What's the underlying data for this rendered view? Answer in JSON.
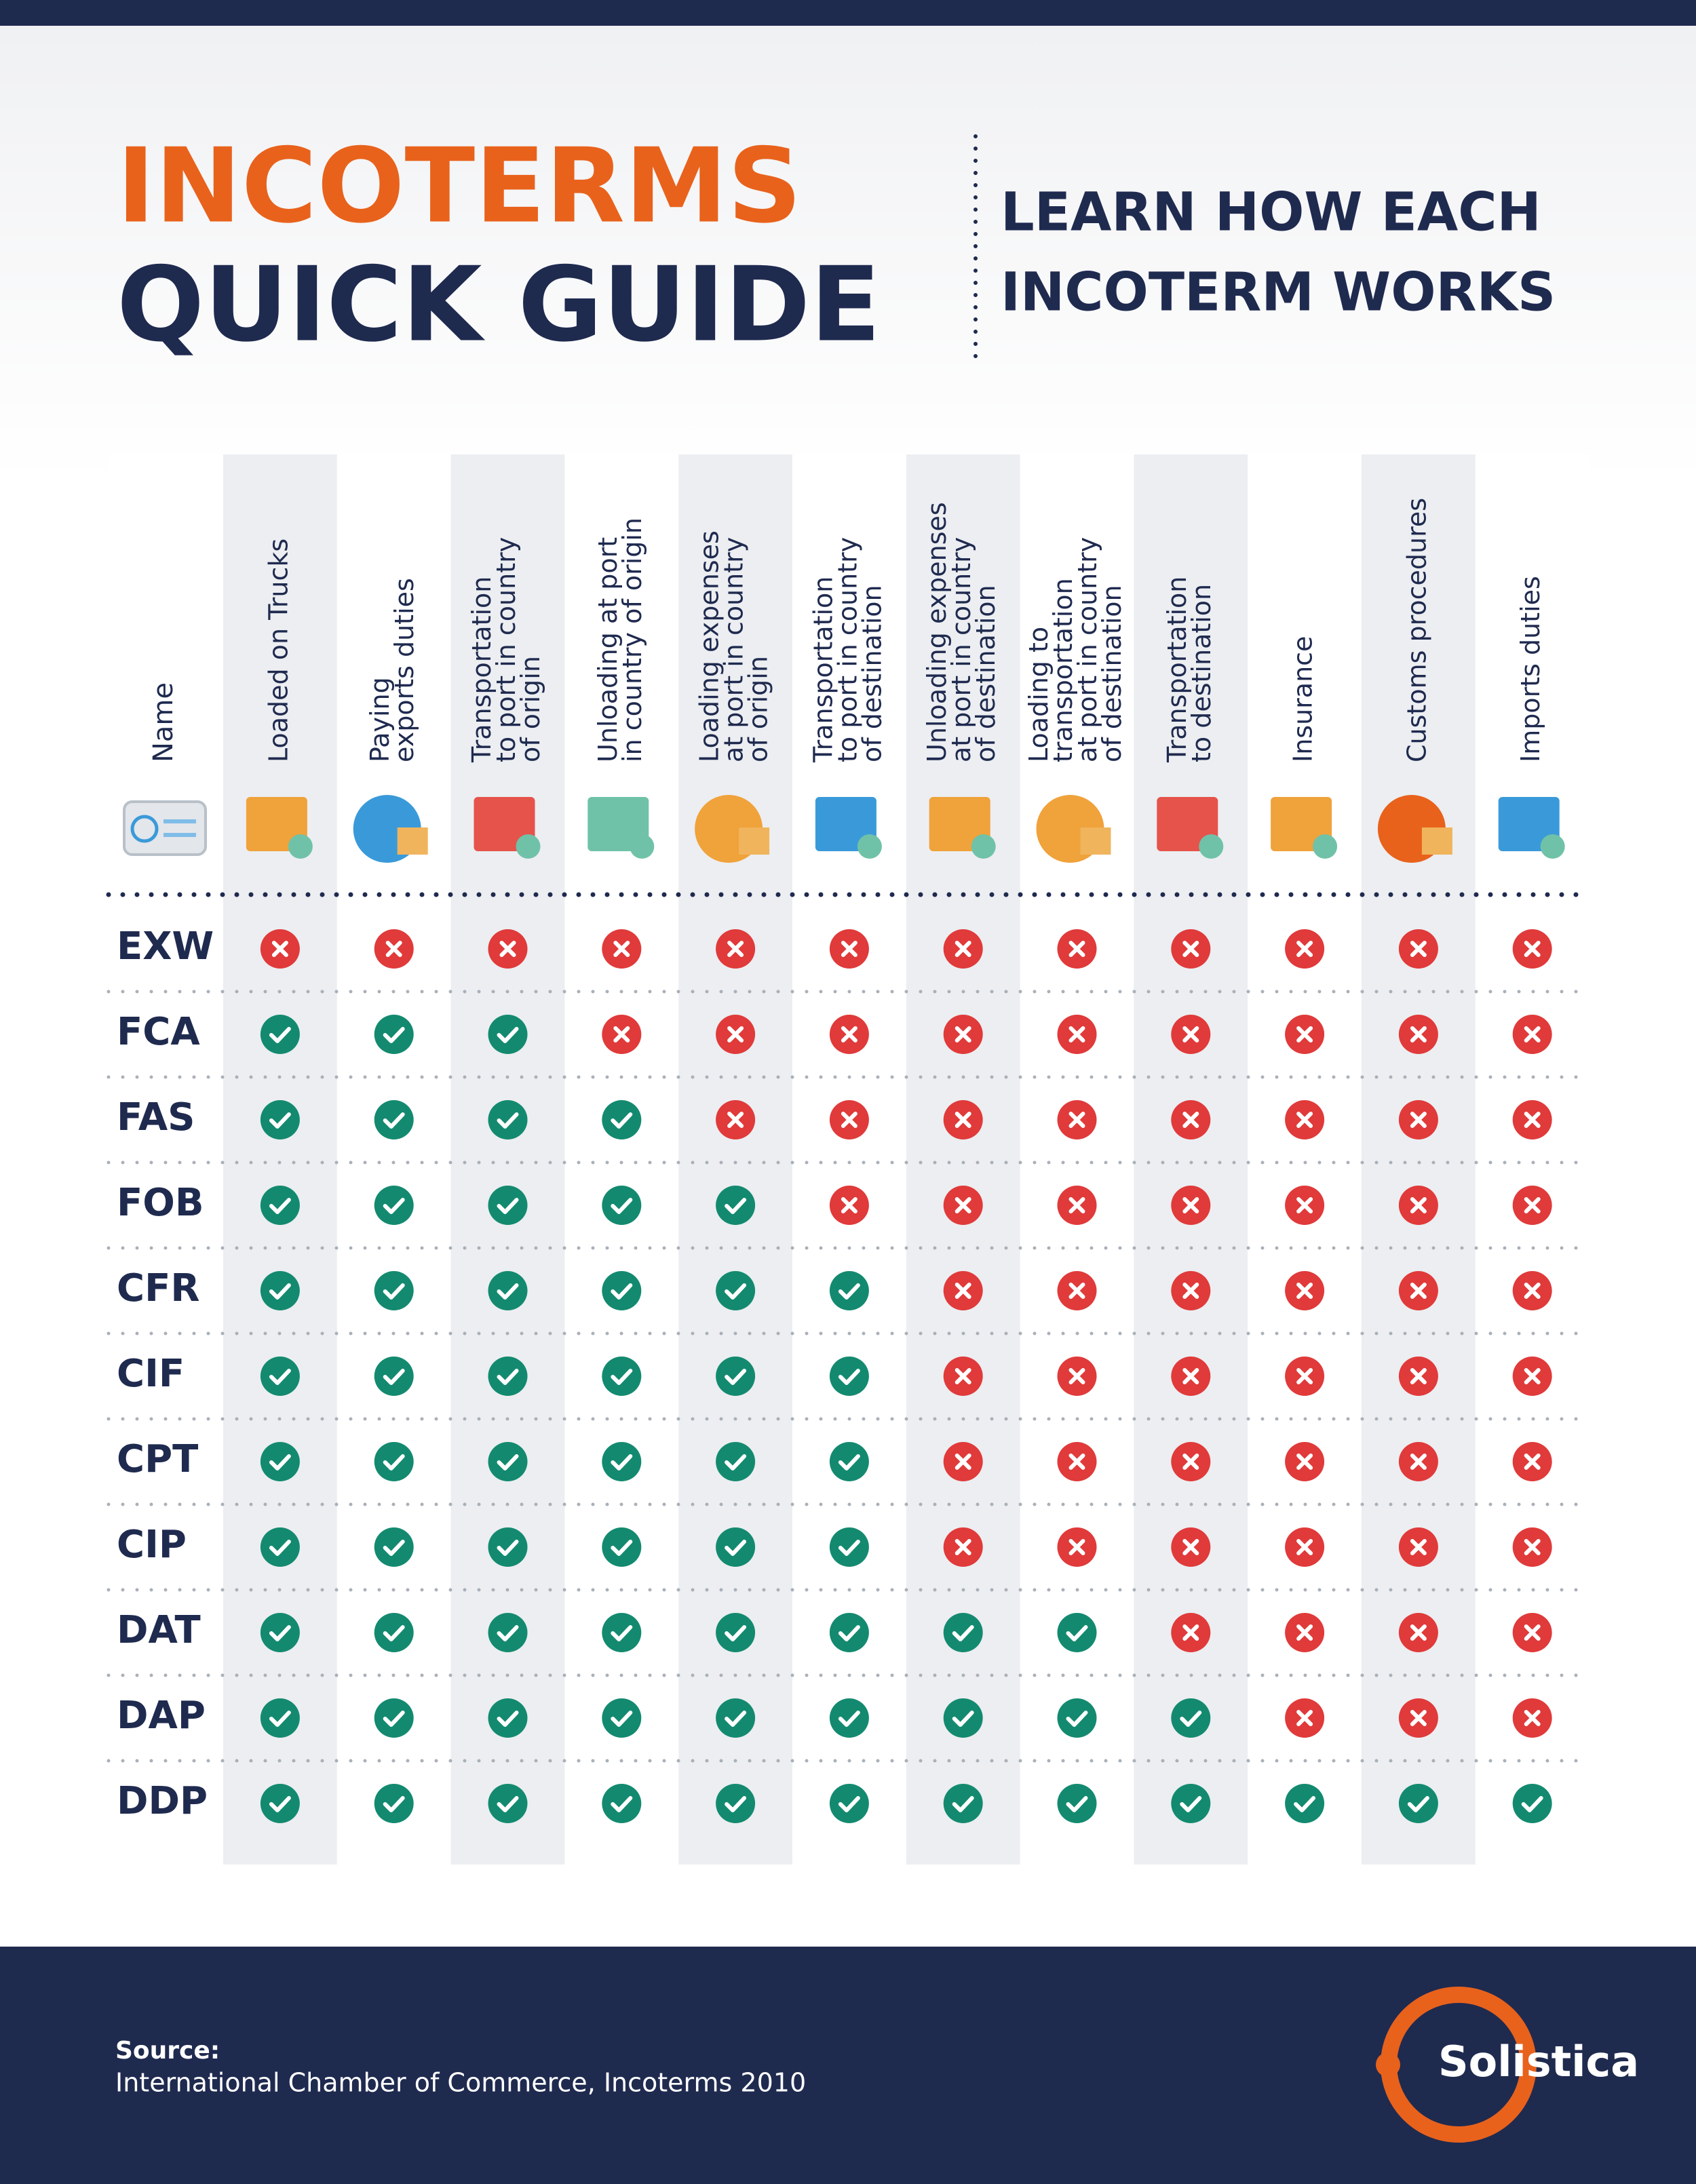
{
  "header": {
    "title_lines": [
      "INCOTERMS",
      "QUICK GUIDE"
    ],
    "subtitle_lines": [
      "LEARN HOW EACH",
      "INCOTERM WORKS"
    ]
  },
  "table": {
    "name_header": "Name",
    "columns": [
      [
        "Loaded on Trucks"
      ],
      [
        "Paying",
        "exports duties"
      ],
      [
        "Transportation",
        "to port in country",
        "of origin"
      ],
      [
        "Unloading at port",
        "in country of origin"
      ],
      [
        "Loading expenses",
        "at port in country",
        "of origin"
      ],
      [
        "Transportation",
        "to port in country",
        "of destination"
      ],
      [
        "Unloading expenses",
        "at port in country",
        "of destination"
      ],
      [
        "Loading to",
        "transportation",
        "at port in country",
        "of destination"
      ],
      [
        "Transportation",
        "to destination"
      ],
      [
        "Insurance"
      ],
      [
        "Customs procedures"
      ],
      [
        "Imports duties"
      ]
    ],
    "rows": [
      {
        "name": "EXW",
        "values": [
          false,
          false,
          false,
          false,
          false,
          false,
          false,
          false,
          false,
          false,
          false,
          false
        ]
      },
      {
        "name": "FCA",
        "values": [
          true,
          true,
          true,
          false,
          false,
          false,
          false,
          false,
          false,
          false,
          false,
          false
        ]
      },
      {
        "name": "FAS",
        "values": [
          true,
          true,
          true,
          true,
          false,
          false,
          false,
          false,
          false,
          false,
          false,
          false
        ]
      },
      {
        "name": "FOB",
        "values": [
          true,
          true,
          true,
          true,
          true,
          false,
          false,
          false,
          false,
          false,
          false,
          false
        ]
      },
      {
        "name": "CFR",
        "values": [
          true,
          true,
          true,
          true,
          true,
          true,
          false,
          false,
          false,
          false,
          false,
          false
        ]
      },
      {
        "name": "CIF",
        "values": [
          true,
          true,
          true,
          true,
          true,
          true,
          false,
          false,
          false,
          false,
          false,
          false
        ]
      },
      {
        "name": "CPT",
        "values": [
          true,
          true,
          true,
          true,
          true,
          true,
          false,
          false,
          false,
          false,
          false,
          false
        ]
      },
      {
        "name": "CIP",
        "values": [
          true,
          true,
          true,
          true,
          true,
          true,
          false,
          false,
          false,
          false,
          false,
          false
        ]
      },
      {
        "name": "DAT",
        "values": [
          true,
          true,
          true,
          true,
          true,
          true,
          true,
          true,
          false,
          false,
          false,
          false
        ]
      },
      {
        "name": "DAP",
        "values": [
          true,
          true,
          true,
          true,
          true,
          true,
          true,
          true,
          true,
          false,
          false,
          false
        ]
      },
      {
        "name": "DDP",
        "values": [
          true,
          true,
          true,
          true,
          true,
          true,
          true,
          true,
          true,
          true,
          true,
          true
        ]
      }
    ]
  },
  "footer": {
    "source_label": "Source:",
    "source": "International Chamber of Commerce, Incoterms 2010",
    "logo": "Solistica"
  }
}
